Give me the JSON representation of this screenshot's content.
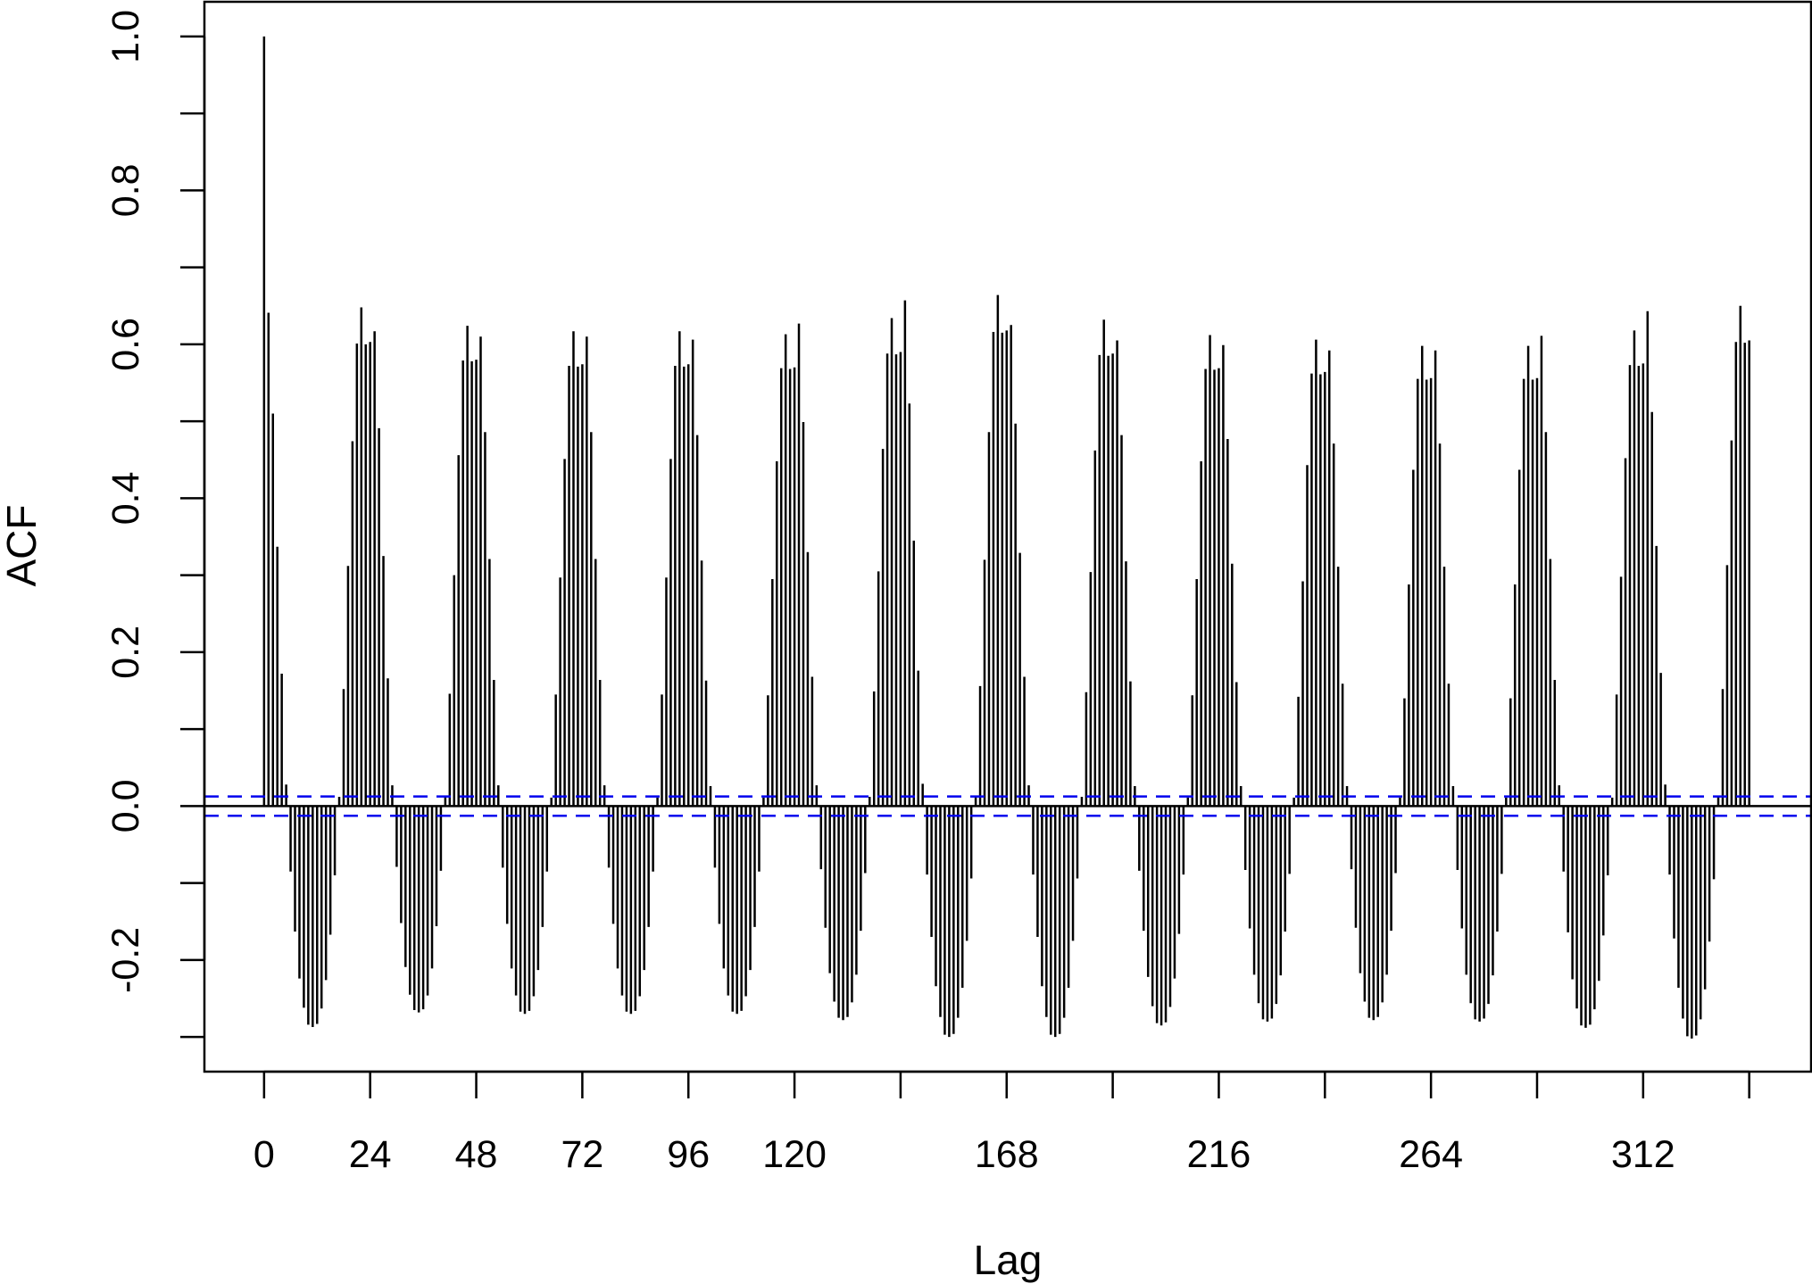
{
  "chart_data": {
    "type": "bar",
    "subtype": "acf-correlogram",
    "xlabel": "Lag",
    "ylabel": "ACF",
    "xlim": [
      -13.5,
      350
    ],
    "ylim": [
      -0.345,
      1.045
    ],
    "x_major_ticks": [
      0,
      24,
      48,
      72,
      96,
      120,
      144,
      168,
      192,
      216,
      240,
      264,
      288,
      312,
      336
    ],
    "x_tick_labels": [
      {
        "value": 0,
        "label": "0"
      },
      {
        "value": 24,
        "label": "24"
      },
      {
        "value": 48,
        "label": "48"
      },
      {
        "value": 72,
        "label": "72"
      },
      {
        "value": 96,
        "label": "96"
      },
      {
        "value": 120,
        "label": "120"
      },
      {
        "value": 168,
        "label": "168"
      },
      {
        "value": 216,
        "label": "216"
      },
      {
        "value": 264,
        "label": "264"
      },
      {
        "value": 312,
        "label": "312"
      }
    ],
    "y_ticks": [
      -0.2,
      0.0,
      0.2,
      0.4,
      0.6,
      0.8,
      1.0
    ],
    "y_tick_labels": [
      "-0.2",
      "0.0",
      "0.2",
      "0.4",
      "0.6",
      "0.8",
      "1.0"
    ],
    "y_minor_ticks": [
      -0.3,
      -0.1,
      0.1,
      0.3,
      0.5,
      0.7,
      0.9
    ],
    "confidence_bounds": [
      0.0125,
      -0.0125
    ],
    "confidence_color": "#0000ee",
    "bar_color": "#000000",
    "grid": false,
    "lag_max": 336,
    "period": 24,
    "first_cycle_values": [
      1.0,
      0.641,
      0.51,
      0.337,
      0.172,
      0.028,
      -0.085,
      -0.163,
      -0.224,
      -0.262,
      -0.284,
      -0.287,
      -0.283,
      -0.263,
      -0.226,
      -0.167,
      -0.09,
      0.012,
      0.152,
      0.312,
      0.474,
      0.601,
      0.648,
      0.6
    ],
    "cycle_peaks": [
      0.648,
      0.624,
      0.617,
      0.617,
      0.613,
      0.634,
      0.664,
      0.632,
      0.612,
      0.606,
      0.598,
      0.598,
      0.618,
      0.65
    ],
    "cycle_troughs": [
      -0.287,
      -0.268,
      -0.27,
      -0.27,
      -0.27,
      -0.278,
      -0.3,
      -0.3,
      -0.285,
      -0.28,
      -0.278,
      -0.28,
      -0.288,
      -0.302
    ]
  }
}
